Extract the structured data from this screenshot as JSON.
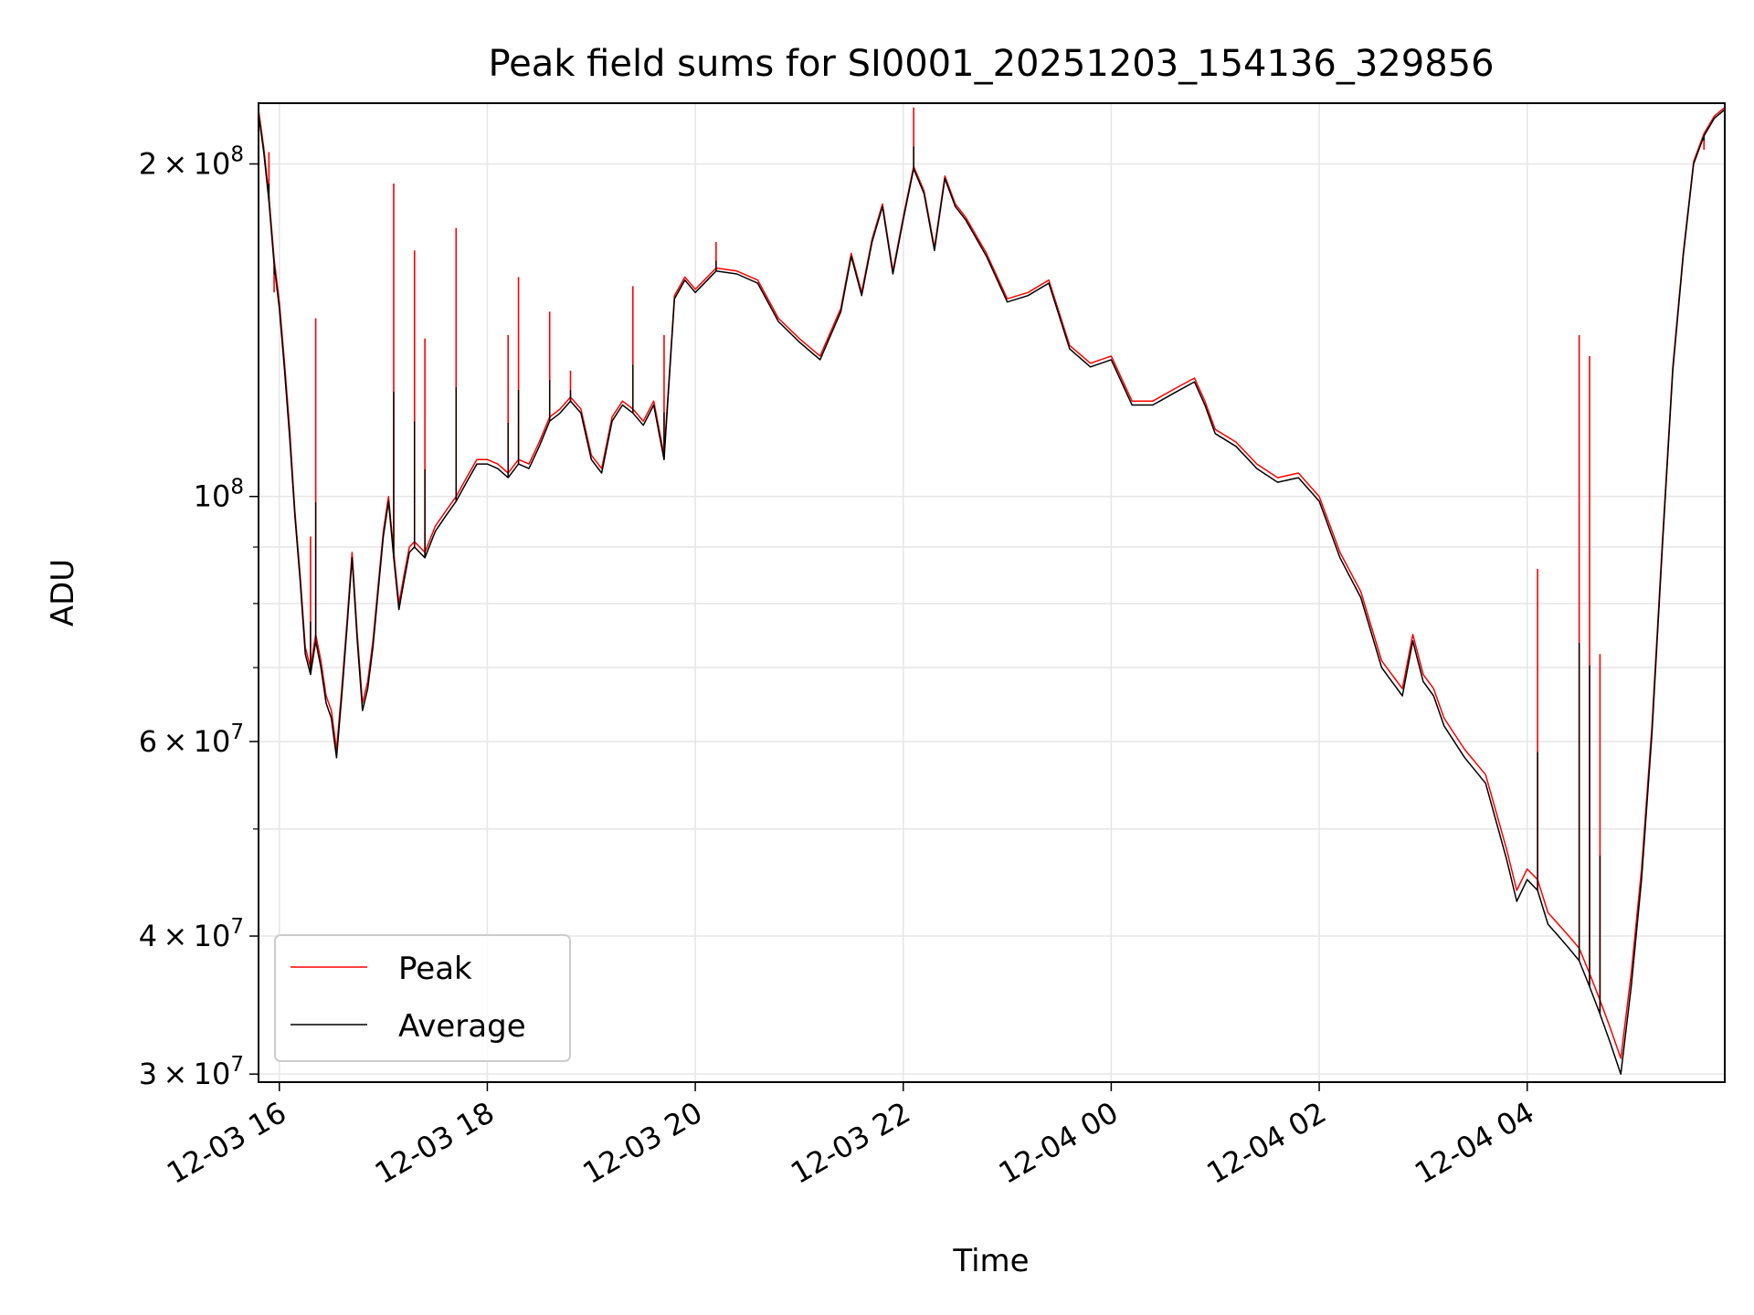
{
  "chart_data": {
    "type": "line",
    "title": "Peak field sums for SI0001_20251203_154136_329856",
    "xlabel": "Time",
    "ylabel": "ADU",
    "yscale": "log",
    "ylim": [
      29500000,
      227000000
    ],
    "xlim": [
      "12-03 15:48",
      "12-04 05:54"
    ],
    "grid": true,
    "legend_position": "lower-left",
    "x_ticks": [
      {
        "value": "12-03 16:00",
        "label": "12-03 16"
      },
      {
        "value": "12-03 18:00",
        "label": "12-03 18"
      },
      {
        "value": "12-03 20:00",
        "label": "12-03 20"
      },
      {
        "value": "12-03 22:00",
        "label": "12-03 22"
      },
      {
        "value": "12-04 00:00",
        "label": "12-04 00"
      },
      {
        "value": "12-04 02:00",
        "label": "12-04 02"
      },
      {
        "value": "12-04 04:00",
        "label": "12-04 04"
      }
    ],
    "y_ticks": [
      {
        "value": 30000000,
        "coef": "3",
        "exp": "7"
      },
      {
        "value": 40000000,
        "coef": "4",
        "exp": "7"
      },
      {
        "value": 60000000,
        "coef": "6",
        "exp": "7"
      },
      {
        "value": 100000000,
        "coef": "",
        "exp": "8"
      },
      {
        "value": 200000000,
        "coef": "2",
        "exp": "8"
      }
    ],
    "y_minor_ticks": [
      50000000,
      70000000,
      80000000,
      90000000
    ],
    "x": [
      "12-03 15:48",
      "12-03 15:51",
      "12-03 15:54",
      "12-03 15:57",
      "12-03 16:00",
      "12-03 16:03",
      "12-03 16:06",
      "12-03 16:09",
      "12-03 16:12",
      "12-03 16:15",
      "12-03 16:18",
      "12-03 16:21",
      "12-03 16:24",
      "12-03 16:27",
      "12-03 16:30",
      "12-03 16:33",
      "12-03 16:36",
      "12-03 16:39",
      "12-03 16:42",
      "12-03 16:45",
      "12-03 16:48",
      "12-03 16:51",
      "12-03 16:54",
      "12-03 16:57",
      "12-03 17:00",
      "12-03 17:03",
      "12-03 17:06",
      "12-03 17:09",
      "12-03 17:12",
      "12-03 17:15",
      "12-03 17:18",
      "12-03 17:24",
      "12-03 17:30",
      "12-03 17:36",
      "12-03 17:42",
      "12-03 17:48",
      "12-03 17:54",
      "12-03 18:00",
      "12-03 18:06",
      "12-03 18:12",
      "12-03 18:18",
      "12-03 18:24",
      "12-03 18:30",
      "12-03 18:36",
      "12-03 18:42",
      "12-03 18:48",
      "12-03 18:54",
      "12-03 19:00",
      "12-03 19:06",
      "12-03 19:12",
      "12-03 19:18",
      "12-03 19:24",
      "12-03 19:30",
      "12-03 19:36",
      "12-03 19:42",
      "12-03 19:48",
      "12-03 19:54",
      "12-03 20:00",
      "12-03 20:12",
      "12-03 20:24",
      "12-03 20:36",
      "12-03 20:48",
      "12-03 21:00",
      "12-03 21:12",
      "12-03 21:24",
      "12-03 21:30",
      "12-03 21:36",
      "12-03 21:42",
      "12-03 21:48",
      "12-03 21:54",
      "12-03 22:00",
      "12-03 22:06",
      "12-03 22:12",
      "12-03 22:18",
      "12-03 22:24",
      "12-03 22:30",
      "12-03 22:36",
      "12-03 22:48",
      "12-03 23:00",
      "12-03 23:12",
      "12-03 23:24",
      "12-03 23:36",
      "12-03 23:48",
      "12-04 00:00",
      "12-04 00:12",
      "12-04 00:24",
      "12-04 00:36",
      "12-04 00:48",
      "12-04 00:54",
      "12-04 01:00",
      "12-04 01:12",
      "12-04 01:24",
      "12-04 01:36",
      "12-04 01:48",
      "12-04 02:00",
      "12-04 02:12",
      "12-04 02:24",
      "12-04 02:36",
      "12-04 02:48",
      "12-04 02:54",
      "12-04 03:00",
      "12-04 03:06",
      "12-04 03:12",
      "12-04 03:24",
      "12-04 03:36",
      "12-04 03:48",
      "12-04 03:54",
      "12-04 04:00",
      "12-04 04:06",
      "12-04 04:12",
      "12-04 04:18",
      "12-04 04:24",
      "12-04 04:30",
      "12-04 04:36",
      "12-04 04:42",
      "12-04 04:48",
      "12-04 04:54",
      "12-04 05:00",
      "12-04 05:06",
      "12-04 05:12",
      "12-04 05:18",
      "12-04 05:24",
      "12-04 05:30",
      "12-04 05:36",
      "12-04 05:42",
      "12-04 05:48",
      "12-04 05:54"
    ],
    "series": [
      {
        "name": "Average",
        "color": "#000000",
        "values": [
          222000000,
          205000000,
          185000000,
          162000000,
          148000000,
          130000000,
          113000000,
          96000000,
          84000000,
          72000000,
          69000000,
          74000000,
          70000000,
          65000000,
          63000000,
          58000000,
          66000000,
          76000000,
          88000000,
          74000000,
          64000000,
          67000000,
          73000000,
          82000000,
          92000000,
          99000000,
          88000000,
          79000000,
          84000000,
          89000000,
          90000000,
          88000000,
          93000000,
          96000000,
          99000000,
          103000000,
          107000000,
          107000000,
          106000000,
          104000000,
          107000000,
          106000000,
          111000000,
          117000000,
          119000000,
          122000000,
          119000000,
          108000000,
          105000000,
          117000000,
          121000000,
          119000000,
          116000000,
          121000000,
          108000000,
          151000000,
          157000000,
          153000000,
          160000000,
          159000000,
          156000000,
          144000000,
          138000000,
          133000000,
          147000000,
          165000000,
          152000000,
          170000000,
          183000000,
          159000000,
          178000000,
          198000000,
          188000000,
          167000000,
          194000000,
          183000000,
          178000000,
          165000000,
          150000000,
          152000000,
          156000000,
          136000000,
          131000000,
          133000000,
          121000000,
          121000000,
          124000000,
          127000000,
          121000000,
          114000000,
          111000000,
          106000000,
          103000000,
          104000000,
          99000000,
          88000000,
          81000000,
          70000000,
          66000000,
          74000000,
          68000000,
          66000000,
          62000000,
          58000000,
          55000000,
          47000000,
          43000000,
          45000000,
          44000000,
          41000000,
          40000000,
          39000000,
          38000000,
          36000000,
          34000000,
          32000000,
          30000000,
          36000000,
          45000000,
          61000000,
          90000000,
          130000000,
          165000000,
          200000000,
          212000000,
          220000000,
          224000000
        ]
      },
      {
        "name": "Peak",
        "color": "#ff0000",
        "values": [
          224000000,
          207000000,
          187000000,
          164000000,
          150000000,
          132000000,
          115000000,
          97000000,
          85000000,
          73000000,
          70000000,
          75000000,
          71000000,
          66000000,
          64000000,
          59000000,
          67000000,
          77000000,
          89000000,
          75000000,
          65000000,
          68000000,
          74000000,
          83000000,
          93000000,
          100000000,
          89000000,
          80000000,
          85000000,
          90000000,
          91000000,
          89000000,
          94000000,
          97000000,
          100000000,
          104000000,
          108000000,
          108000000,
          107000000,
          105000000,
          108000000,
          107000000,
          112000000,
          118000000,
          120000000,
          123000000,
          120000000,
          109000000,
          106000000,
          118000000,
          122000000,
          120000000,
          117000000,
          122000000,
          109000000,
          152000000,
          158000000,
          154000000,
          161000000,
          160000000,
          157000000,
          145000000,
          139000000,
          134000000,
          148000000,
          166000000,
          153000000,
          171000000,
          184000000,
          160000000,
          179000000,
          199000000,
          189000000,
          168000000,
          195000000,
          184000000,
          179000000,
          166000000,
          151000000,
          153000000,
          157000000,
          137000000,
          132000000,
          134000000,
          122000000,
          122000000,
          125000000,
          128000000,
          122000000,
          115000000,
          112000000,
          107000000,
          104000000,
          105000000,
          100000000,
          89000000,
          82000000,
          71000000,
          67000000,
          75000000,
          69000000,
          67000000,
          63000000,
          59000000,
          56000000,
          48000000,
          44000000,
          46000000,
          45000000,
          42000000,
          41000000,
          40000000,
          39000000,
          37000000,
          35000000,
          33000000,
          31000000,
          37000000,
          46000000,
          62000000,
          91000000,
          131000000,
          166000000,
          201000000,
          213000000,
          221000000,
          225000000
        ]
      }
    ],
    "peak_spikes": [
      {
        "x": "12-03 15:54",
        "value": 205000000
      },
      {
        "x": "12-03 15:57",
        "value": 153000000
      },
      {
        "x": "12-03 16:18",
        "value": 92000000
      },
      {
        "x": "12-03 16:21",
        "value": 145000000
      },
      {
        "x": "12-03 17:06",
        "value": 192000000
      },
      {
        "x": "12-03 17:18",
        "value": 167000000
      },
      {
        "x": "12-03 17:24",
        "value": 139000000
      },
      {
        "x": "12-03 17:42",
        "value": 175000000
      },
      {
        "x": "12-03 18:12",
        "value": 140000000
      },
      {
        "x": "12-03 18:18",
        "value": 158000000
      },
      {
        "x": "12-03 18:36",
        "value": 147000000
      },
      {
        "x": "12-03 18:48",
        "value": 130000000
      },
      {
        "x": "12-03 19:24",
        "value": 155000000
      },
      {
        "x": "12-03 19:42",
        "value": 140000000
      },
      {
        "x": "12-03 20:12",
        "value": 170000000
      },
      {
        "x": "12-03 22:06",
        "value": 225000000
      },
      {
        "x": "12-04 04:06",
        "value": 86000000
      },
      {
        "x": "12-04 04:30",
        "value": 140000000
      },
      {
        "x": "12-04 04:36",
        "value": 134000000
      },
      {
        "x": "12-04 04:42",
        "value": 72000000
      },
      {
        "x": "12-04 05:42",
        "value": 206000000
      }
    ],
    "legend": {
      "entries": [
        {
          "label": "Peak",
          "color": "#ff0000"
        },
        {
          "label": "Average",
          "color": "#000000"
        }
      ]
    }
  }
}
